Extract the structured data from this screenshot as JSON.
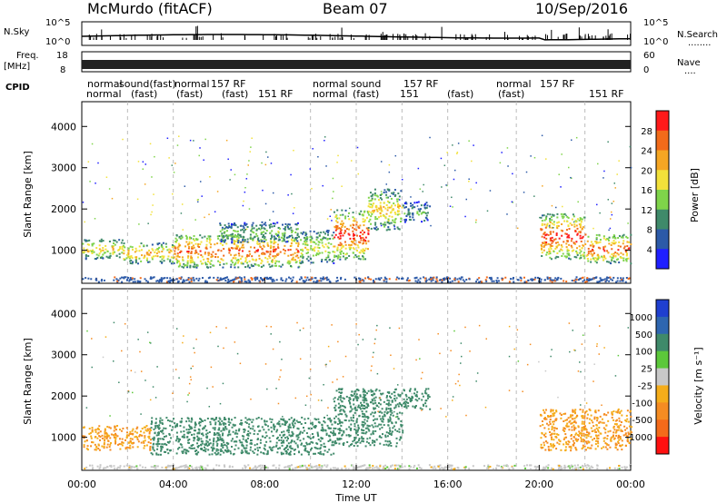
{
  "header": {
    "title": "McMurdo (fitACF)",
    "beam": "Beam 07",
    "date": "10/Sep/2016"
  },
  "noise_panel": {
    "left_label": "N.Sky",
    "right_label": "N.Search",
    "right_dots": "........",
    "ticks_left": [
      "10^5",
      "10^0"
    ],
    "ticks_right": [
      "10^5",
      "10^0"
    ]
  },
  "freq_panel": {
    "left_label_1": "Freq.",
    "left_label_2": "[MHz]",
    "right_label": "Nave",
    "right_dots": "....",
    "ticks_left": [
      "18",
      "8"
    ],
    "ticks_right": [
      "60",
      "0"
    ]
  },
  "cpid_panel": {
    "label": "CPID",
    "entries_row1": [
      "normal",
      "sound(fast)",
      "normal",
      "157 RF",
      "normal",
      "sound",
      "157 RF",
      "normal",
      "157 RF"
    ],
    "entries_row2": [
      "normal",
      "(fast)",
      "(fast)",
      "(fast)",
      "151 RF",
      "normal",
      "(fast)",
      "151",
      "(fast)",
      "(fast)",
      "151 RF"
    ]
  },
  "power_panel": {
    "ylabel": "Slant Range [km]",
    "yticks": [
      "4000",
      "3000",
      "2000",
      "1000"
    ],
    "colorbar_label": "Power [dB]",
    "colorbar_ticks": [
      "28",
      "24",
      "20",
      "16",
      "12",
      "8",
      "4"
    ]
  },
  "velocity_panel": {
    "ylabel": "Slant Range [km]",
    "yticks": [
      "4000",
      "3000",
      "2000",
      "1000"
    ],
    "colorbar_label": "Velocity [m s⁻¹]",
    "colorbar_ticks": [
      "1000",
      "500",
      "100",
      "25",
      "-25",
      "-100",
      "-500",
      "-1000"
    ]
  },
  "xaxis": {
    "label": "Time UT",
    "ticks": [
      "00:00",
      "04:00",
      "08:00",
      "12:00",
      "16:00",
      "20:00",
      "00:00"
    ]
  },
  "chart_data": {
    "type": "heatmap",
    "title": "McMurdo (fitACF)",
    "subtitle": "Beam 07",
    "date": "10/Sep/2016",
    "xlabel": "Time UT",
    "ylabel": "Slant Range [km]",
    "xlim": [
      0,
      24
    ],
    "ylim": [
      200,
      4600
    ],
    "power_colorbar": {
      "label": "Power [dB]",
      "range": [
        0,
        30
      ],
      "colors": [
        "#1f1fff",
        "#2c5aa8",
        "#3f8a6a",
        "#7fd44a",
        "#f2e13a",
        "#f5a623",
        "#f26b1a",
        "#ff1a1a"
      ]
    },
    "velocity_colorbar": {
      "label": "Velocity [m s⁻¹]",
      "range": [
        -1000,
        1000
      ],
      "colors": [
        "#ff1010",
        "#f46a1a",
        "#f58c22",
        "#f5ad1a",
        "#c8c8c8",
        "#5cc83a",
        "#3f8a6a",
        "#2e66b0",
        "#1f3fd0"
      ]
    },
    "power_regions": [
      {
        "t0": 0.0,
        "t1": 1.8,
        "r0": 800,
        "r1": 1300,
        "level": 18
      },
      {
        "t0": 1.8,
        "t1": 4.0,
        "r0": 700,
        "r1": 1200,
        "level": 20
      },
      {
        "t0": 4.0,
        "t1": 9.5,
        "r0": 600,
        "r1": 1400,
        "level": 24
      },
      {
        "t0": 6.0,
        "t1": 9.5,
        "r0": 1200,
        "r1": 1700,
        "level": 12
      },
      {
        "t0": 9.5,
        "t1": 11.0,
        "r0": 700,
        "r1": 1500,
        "level": 16
      },
      {
        "t0": 11.0,
        "t1": 12.5,
        "r0": 800,
        "r1": 2000,
        "level": 26
      },
      {
        "t0": 12.5,
        "t1": 14.0,
        "r0": 1500,
        "r1": 2500,
        "level": 18
      },
      {
        "t0": 14.0,
        "t1": 15.2,
        "r0": 1700,
        "r1": 2200,
        "level": 10
      },
      {
        "t0": 20.0,
        "t1": 22.0,
        "r0": 800,
        "r1": 1900,
        "level": 26
      },
      {
        "t0": 22.0,
        "t1": 24.0,
        "r0": 700,
        "r1": 1400,
        "level": 24
      }
    ],
    "velocity_regions": [
      {
        "t0": 0.0,
        "t1": 3.0,
        "r0": 700,
        "r1": 1300,
        "velocity": -100
      },
      {
        "t0": 3.0,
        "t1": 11.0,
        "r0": 600,
        "r1": 1500,
        "velocity": 300
      },
      {
        "t0": 11.0,
        "t1": 14.0,
        "r0": 800,
        "r1": 2200,
        "velocity": 300
      },
      {
        "t0": 14.0,
        "t1": 15.2,
        "r0": 1700,
        "r1": 2200,
        "velocity": 300
      },
      {
        "t0": 20.0,
        "t1": 24.0,
        "r0": 700,
        "r1": 1700,
        "velocity": -100
      }
    ]
  }
}
